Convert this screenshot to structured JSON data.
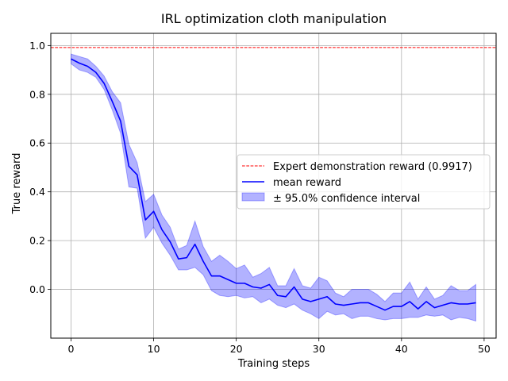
{
  "chart_data": {
    "type": "line",
    "title": "IRL optimization cloth manipulation",
    "xlabel": "Training steps",
    "ylabel": "True reward",
    "xlim": [
      -2.45,
      51.45
    ],
    "ylim": [
      -0.2,
      1.05
    ],
    "xticks": [
      0,
      10,
      20,
      30,
      40,
      50
    ],
    "yticks": [
      0.0,
      0.2,
      0.4,
      0.6,
      0.8,
      1.0
    ],
    "xtick_labels": [
      "0",
      "10",
      "20",
      "30",
      "40",
      "50"
    ],
    "ytick_labels": [
      "0.0",
      "0.2",
      "0.4",
      "0.6",
      "0.8",
      "1.0"
    ],
    "grid": true,
    "legend_position": "center-right",
    "expert_reward": 0.9917,
    "x": [
      0,
      1,
      2,
      3,
      4,
      5,
      6,
      7,
      8,
      9,
      10,
      11,
      12,
      13,
      14,
      15,
      16,
      17,
      18,
      19,
      20,
      21,
      22,
      23,
      24,
      25,
      26,
      27,
      28,
      29,
      30,
      31,
      32,
      33,
      34,
      35,
      36,
      37,
      38,
      39,
      40,
      41,
      42,
      43,
      44,
      45,
      46,
      47,
      48,
      49
    ],
    "series": [
      {
        "name": "Expert demonstration reward (0.9917)",
        "kind": "hline",
        "value": 0.9917,
        "color": "#ff0000",
        "style": "dashed"
      },
      {
        "name": "mean reward",
        "kind": "line",
        "color": "#0000ff",
        "values": [
          0.945,
          0.928,
          0.915,
          0.89,
          0.845,
          0.77,
          0.69,
          0.505,
          0.47,
          0.285,
          0.32,
          0.245,
          0.195,
          0.125,
          0.13,
          0.185,
          0.115,
          0.055,
          0.055,
          0.04,
          0.025,
          0.025,
          0.01,
          0.005,
          0.02,
          -0.025,
          -0.03,
          0.01,
          -0.04,
          -0.05,
          -0.04,
          -0.03,
          -0.06,
          -0.065,
          -0.06,
          -0.055,
          -0.055,
          -0.07,
          -0.085,
          -0.07,
          -0.07,
          -0.05,
          -0.08,
          -0.05,
          -0.075,
          -0.065,
          -0.055,
          -0.06,
          -0.06,
          -0.055
        ]
      },
      {
        "name": "± 95.0% confidence interval",
        "kind": "band",
        "color": "#0000ff",
        "lower": [
          0.925,
          0.9,
          0.89,
          0.87,
          0.82,
          0.735,
          0.64,
          0.42,
          0.415,
          0.21,
          0.255,
          0.19,
          0.14,
          0.08,
          0.08,
          0.09,
          0.06,
          -0.005,
          -0.025,
          -0.03,
          -0.025,
          -0.035,
          -0.03,
          -0.055,
          -0.04,
          -0.065,
          -0.075,
          -0.06,
          -0.085,
          -0.1,
          -0.12,
          -0.09,
          -0.105,
          -0.1,
          -0.12,
          -0.11,
          -0.11,
          -0.12,
          -0.125,
          -0.12,
          -0.12,
          -0.115,
          -0.115,
          -0.105,
          -0.11,
          -0.105,
          -0.125,
          -0.115,
          -0.12,
          -0.13
        ],
        "upper": [
          0.965,
          0.955,
          0.945,
          0.915,
          0.875,
          0.81,
          0.765,
          0.595,
          0.52,
          0.36,
          0.39,
          0.305,
          0.255,
          0.165,
          0.18,
          0.28,
          0.175,
          0.115,
          0.14,
          0.115,
          0.085,
          0.1,
          0.05,
          0.065,
          0.09,
          0.015,
          0.015,
          0.085,
          0.015,
          0.005,
          0.05,
          0.035,
          -0.015,
          -0.03,
          0.0,
          0.0,
          0.0,
          -0.02,
          -0.05,
          -0.015,
          -0.015,
          0.03,
          -0.04,
          0.01,
          -0.04,
          -0.025,
          0.015,
          -0.005,
          -0.005,
          0.02
        ]
      }
    ],
    "legend": [
      "Expert demonstration reward (0.9917)",
      "mean reward",
      "± 95.0% confidence interval"
    ]
  }
}
